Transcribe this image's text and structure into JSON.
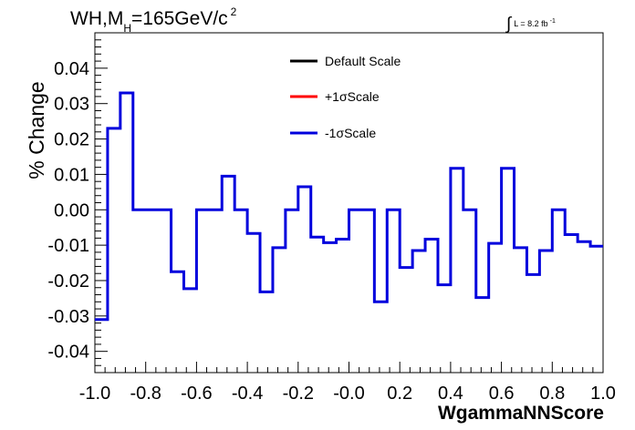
{
  "chart_data": {
    "type": "line",
    "title_main": "WH,M",
    "title_sub": "H",
    "title_rest": "=165GeV/c",
    "title_sup": "2",
    "lumi_text": "L = 8.2 fb",
    "lumi_sup": "-1",
    "lumi_integral": "∫",
    "xlabel": "WgammaNNScore",
    "ylabel": "% Change",
    "xlim": [
      -1.0,
      1.0
    ],
    "ylim": [
      -0.046,
      0.05
    ],
    "x_ticks": [
      "-1.0",
      "-0.8",
      "-0.6",
      "-0.4",
      "-0.2",
      "-0.0",
      "0.2",
      "0.4",
      "0.6",
      "0.8",
      "1.0"
    ],
    "y_ticks": [
      "-0.04",
      "-0.03",
      "-0.02",
      "-0.01",
      "0.00",
      "0.01",
      "0.02",
      "0.03",
      "0.04"
    ],
    "bin_edges": [
      -1.0,
      -0.95,
      -0.9,
      -0.85,
      -0.8,
      -0.75,
      -0.7,
      -0.65,
      -0.6,
      -0.55,
      -0.5,
      -0.45,
      -0.4,
      -0.35,
      -0.3,
      -0.25,
      -0.2,
      -0.15,
      -0.1,
      -0.05,
      0.0,
      0.05,
      0.1,
      0.15,
      0.2,
      0.25,
      0.3,
      0.35,
      0.4,
      0.45,
      0.5,
      0.55,
      0.6,
      0.65,
      0.7,
      0.75,
      0.8,
      0.85,
      0.9,
      0.95,
      1.0
    ],
    "legend": [
      {
        "label": "Default Scale",
        "color": "#000000"
      },
      {
        "label": "+1σScale",
        "color": "#ff0000"
      },
      {
        "label": "-1σScale",
        "color": "#0000dd"
      }
    ],
    "series": [
      {
        "name": "-1σScale",
        "color": "#0000dd",
        "values": [
          -0.031,
          0.023,
          0.033,
          0.0,
          0.0,
          0.0,
          -0.0175,
          -0.0223,
          0.0,
          0.0,
          0.0095,
          0.0,
          -0.0067,
          -0.0232,
          -0.0107,
          0.0,
          0.0065,
          -0.0077,
          -0.0093,
          -0.0083,
          0.0,
          0.0,
          -0.026,
          0.0,
          -0.0163,
          -0.0115,
          -0.0083,
          -0.0212,
          0.0117,
          0.0,
          -0.0248,
          -0.0095,
          0.0117,
          -0.0107,
          -0.0183,
          -0.0115,
          0.0,
          -0.007,
          -0.009,
          -0.0103
        ]
      }
    ]
  }
}
